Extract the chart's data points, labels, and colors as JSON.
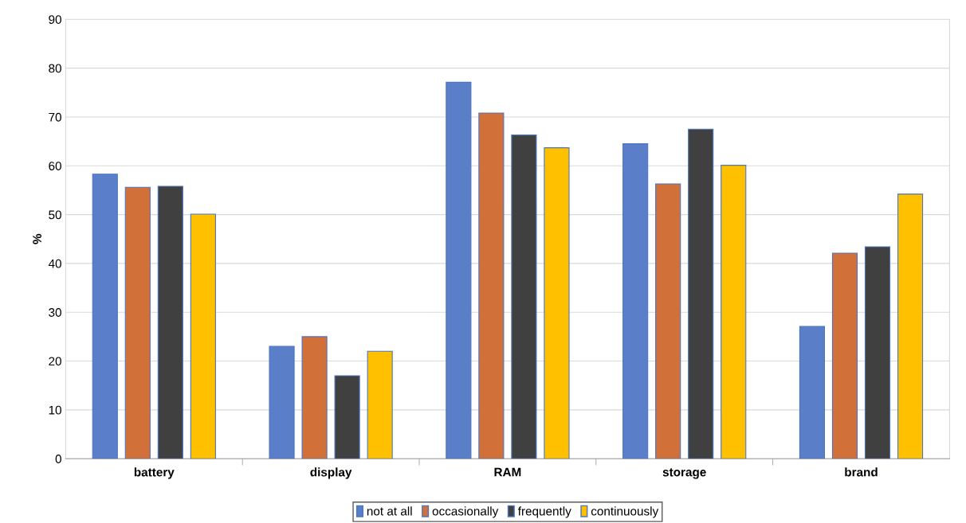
{
  "chart_data": {
    "type": "bar",
    "ylabel": "%",
    "categories": [
      "battery",
      "display",
      "RAM",
      "storage",
      "brand"
    ],
    "series": [
      {
        "name": "not at all",
        "color": "#5a7fc8",
        "values": [
          58.3,
          23.0,
          77.1,
          64.5,
          27.1
        ]
      },
      {
        "name": "occasionally",
        "color": "#d2703a",
        "values": [
          55.6,
          25.0,
          70.8,
          56.3,
          42.1
        ]
      },
      {
        "name": "frequently",
        "color": "#404040",
        "values": [
          55.8,
          17.0,
          66.3,
          67.5,
          43.4
        ]
      },
      {
        "name": "continuously",
        "color": "#ffc000",
        "values": [
          50.1,
          22.0,
          63.7,
          60.1,
          54.2
        ]
      }
    ],
    "ylim": [
      0,
      90
    ],
    "yticks": [
      0,
      10,
      20,
      30,
      40,
      50,
      60,
      70,
      80,
      90
    ],
    "grid": "y",
    "legend": "bottom"
  }
}
